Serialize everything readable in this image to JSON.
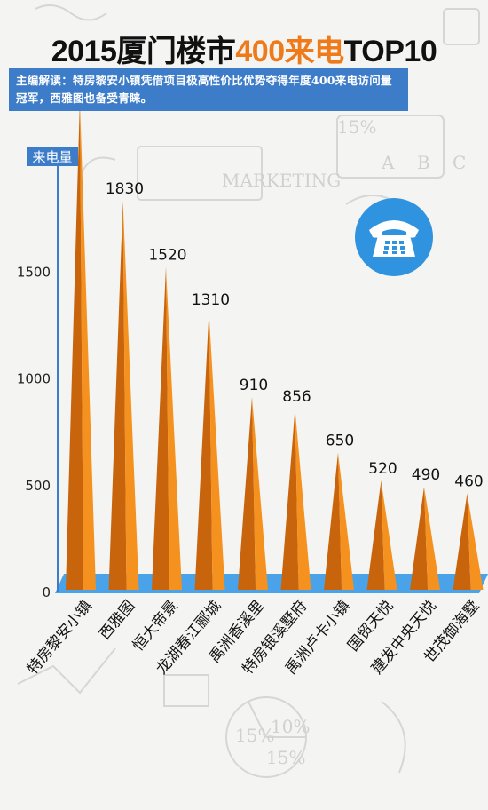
{
  "title": {
    "prefix": "2015厦门楼市",
    "highlight": "400来电",
    "suffix": "TOP10"
  },
  "editor_note": {
    "label": "主编解读：",
    "text": "特房黎安小镇凭借项目极高性价比优势夺得年度400来电访问量冠军，西雅图也备受青睐。"
  },
  "colors": {
    "bar": "#f5911e",
    "bar_dark": "#c8650c",
    "axis": "#3d7cc8",
    "floor": "#4aa3e8",
    "phone_bg": "#2f93e0"
  },
  "icons": {
    "phone": "phone-icon"
  },
  "chart_data": {
    "type": "bar",
    "ylabel": "来电量",
    "ylim": [
      0,
      2500
    ],
    "yticks": [
      0,
      500,
      1000,
      1500
    ],
    "categories": [
      "特房黎安小镇",
      "西雅图",
      "恒大帝景",
      "龙湖春江郦城",
      "禹洲香溪里",
      "特房银溪墅府",
      "禹洲卢卡小镇",
      "国贸天悦",
      "建发中央天悦",
      "世茂御海墅"
    ],
    "values": [
      2300,
      1830,
      1520,
      1310,
      910,
      856,
      650,
      520,
      490,
      460
    ],
    "grid": false,
    "legend": "none"
  }
}
